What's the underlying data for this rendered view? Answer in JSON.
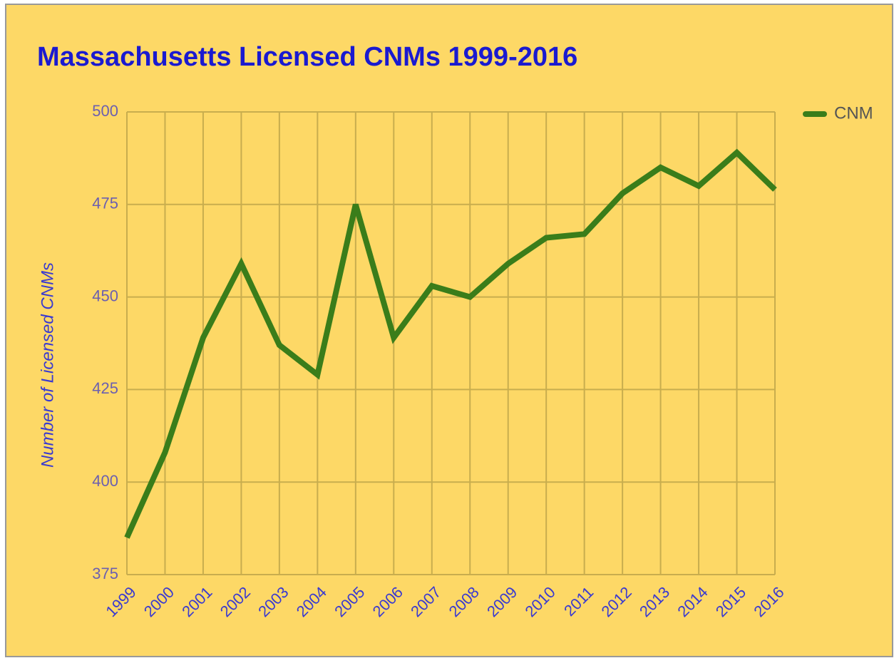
{
  "chart_data": {
    "type": "line",
    "title": "Massachusetts Licensed CNMs 1999-2016",
    "y_label": "Number of Licensed CNMs",
    "categories": [
      "1999",
      "2000",
      "2001",
      "2002",
      "2003",
      "2004",
      "2005",
      "2006",
      "2007",
      "2008",
      "2009",
      "2010",
      "2011",
      "2012",
      "2013",
      "2014",
      "2015",
      "2016"
    ],
    "series": [
      {
        "name": "CNM",
        "color": "#3a7d1a",
        "values": [
          385,
          408,
          439,
          459,
          437,
          429,
          475,
          439,
          453,
          450,
          459,
          466,
          467,
          478,
          485,
          480,
          489,
          479
        ]
      }
    ],
    "ylim": [
      375,
      500
    ],
    "yticks": [
      375,
      400,
      425,
      450,
      475,
      500
    ],
    "grid": true,
    "legend": "top-right"
  }
}
